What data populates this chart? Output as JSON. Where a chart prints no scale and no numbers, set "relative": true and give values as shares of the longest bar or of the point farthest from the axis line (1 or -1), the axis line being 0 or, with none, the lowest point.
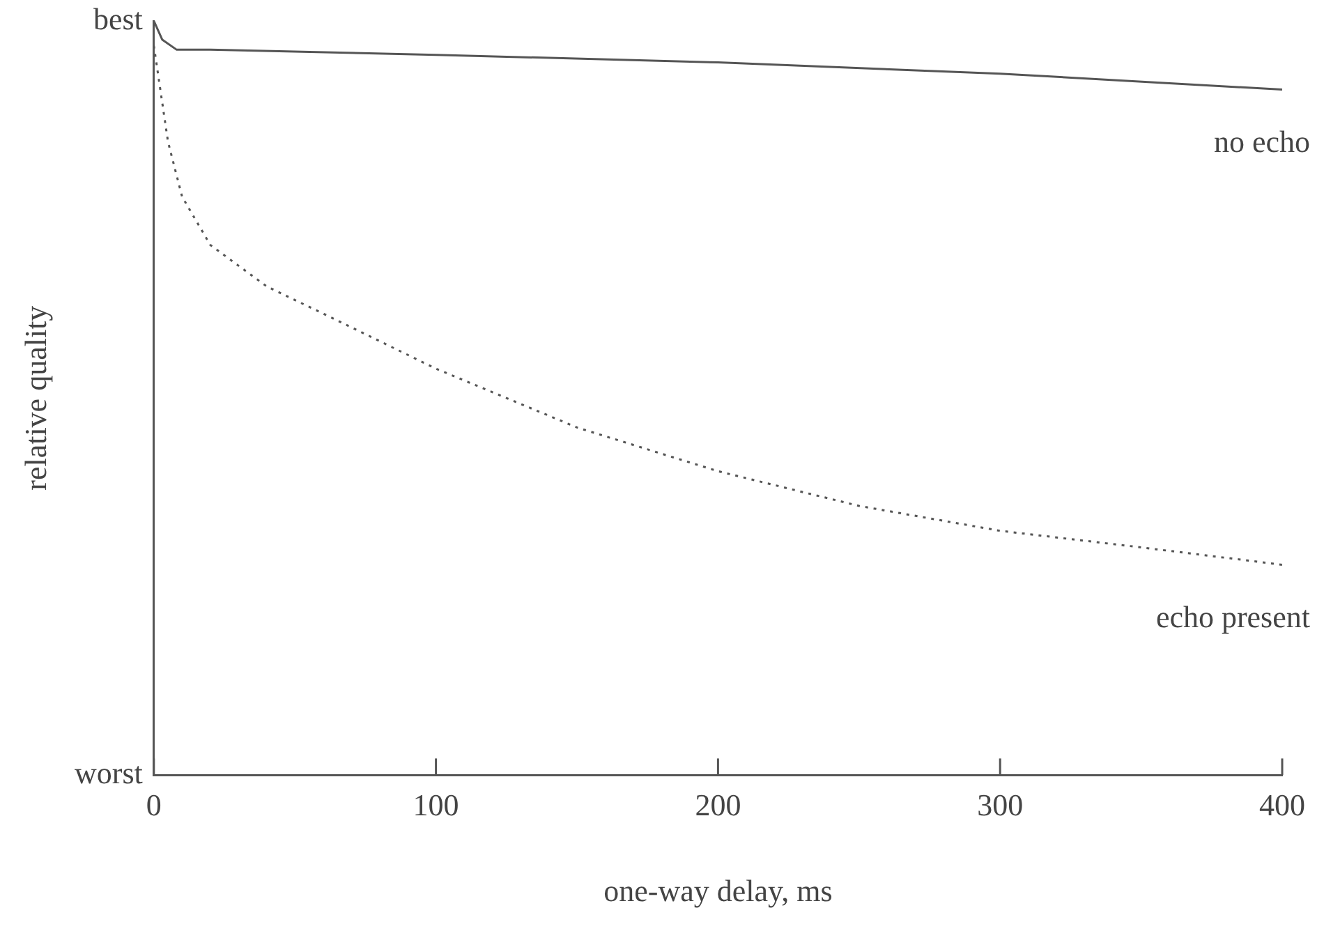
{
  "chart_data": {
    "type": "line",
    "xlabel": "one-way delay, ms",
    "ylabel": "relative quality",
    "relative": true,
    "annotations": [
      "best",
      "worst"
    ],
    "xlim": [
      0,
      400
    ],
    "xticks": [
      0,
      100,
      200,
      300,
      400
    ],
    "grid": false,
    "legend": false,
    "marker": "none",
    "series": [
      {
        "name": "no echo",
        "color": "#555555",
        "line_style": "solid",
        "x": [
          0,
          3,
          8,
          20,
          100,
          200,
          300,
          400
        ],
        "values": [
          1.0,
          0.975,
          0.962,
          0.962,
          0.955,
          0.945,
          0.93,
          0.909
        ]
      },
      {
        "name": "echo present",
        "color": "#555555",
        "line_style": "dotted",
        "x": [
          0,
          5,
          10,
          20,
          40,
          60,
          100,
          150,
          200,
          250,
          300,
          350,
          400
        ],
        "values": [
          0.967,
          0.84,
          0.767,
          0.703,
          0.648,
          0.612,
          0.539,
          0.461,
          0.403,
          0.357,
          0.324,
          0.302,
          0.279
        ]
      }
    ]
  }
}
